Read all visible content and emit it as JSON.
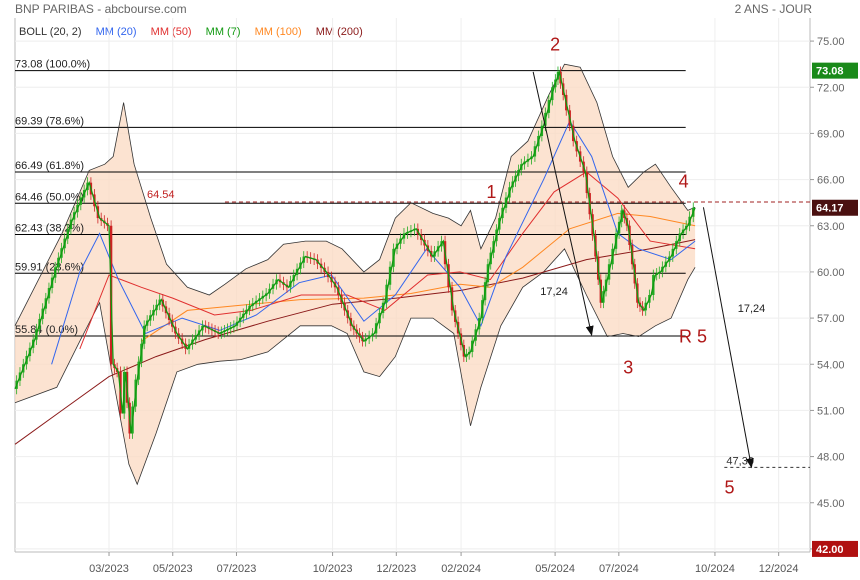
{
  "header": {
    "title": "BNP PARIBAS - abcbourse.com",
    "period": "2 ANS - JOUR"
  },
  "legend": [
    {
      "label": "BOLL (20, 2)",
      "color": "#333333"
    },
    {
      "label": "MM (20)",
      "color": "#3366ee"
    },
    {
      "label": "MM (50)",
      "color": "#e03030"
    },
    {
      "label": "MM (7)",
      "color": "#119911"
    },
    {
      "label": "MM (100)",
      "color": "#ff8822"
    },
    {
      "label": "MM (200)",
      "color": "#8b1a1a"
    }
  ],
  "chart_data": {
    "type": "line",
    "y_axis_side": "right",
    "ylim": [
      41.8,
      76.5
    ],
    "y_ticks": [
      {
        "value": 75,
        "label": "75.00"
      },
      {
        "value": 72,
        "label": "72.00"
      },
      {
        "value": 69,
        "label": "69.00"
      },
      {
        "value": 66,
        "label": "66.00"
      },
      {
        "value": 63,
        "label": "63.00"
      },
      {
        "value": 60,
        "label": "60.00"
      },
      {
        "value": 57,
        "label": "57.00"
      },
      {
        "value": 54,
        "label": "54.00"
      },
      {
        "value": 51,
        "label": "51.00"
      },
      {
        "value": 48,
        "label": "48.00"
      },
      {
        "value": 45,
        "label": "45.00"
      },
      {
        "value": 42,
        "label": "42.00"
      }
    ],
    "x_range": [
      "2022-12-01",
      "2024-12-31"
    ],
    "x_ticks": [
      {
        "date": "2023-03-01",
        "label": "03/2023"
      },
      {
        "date": "2023-05-01",
        "label": "05/2023"
      },
      {
        "date": "2023-07-01",
        "label": "07/2023"
      },
      {
        "date": "2023-10-01",
        "label": "10/2023"
      },
      {
        "date": "2023-12-01",
        "label": "12/2023"
      },
      {
        "date": "2024-02-01",
        "label": "02/2024"
      },
      {
        "date": "2024-05-01",
        "label": "05/2024"
      },
      {
        "date": "2024-07-01",
        "label": "07/2024"
      },
      {
        "date": "2024-10-01",
        "label": "10/2024"
      },
      {
        "date": "2024-12-01",
        "label": "12/2024"
      }
    ],
    "last_price": {
      "value": 64.17,
      "label": "64.17"
    },
    "high_badge": {
      "value": 73.08,
      "label": "73.08"
    },
    "low_badge": {
      "value": 42.0,
      "label": "42.00"
    },
    "fibonacci_levels": [
      {
        "value": 73.08,
        "label": "73.08  (100.0%)"
      },
      {
        "value": 69.39,
        "label": "69.39  (78.6%)"
      },
      {
        "value": 66.49,
        "label": "66.49  (61.8%)"
      },
      {
        "value": 64.46,
        "label": "64.46  (50.0%)"
      },
      {
        "value": 62.43,
        "label": "62.43  (38.2%)"
      },
      {
        "value": 59.91,
        "label": "59.91  (23.6%)"
      },
      {
        "value": 55.84,
        "label": "55.84  (0.0%)"
      }
    ],
    "resistance_line": {
      "value": 64.54,
      "label": "64.54"
    },
    "target_level": {
      "value": 47.3,
      "label": "47,30"
    },
    "wave_labels": [
      {
        "label": "1",
        "date": "2024-03-01",
        "value": 64.8
      },
      {
        "label": "2",
        "date": "2024-05-01",
        "value": 74.4
      },
      {
        "label": "3",
        "date": "2024-07-10",
        "value": 53.4
      },
      {
        "label": "4",
        "date": "2024-09-01",
        "value": 65.5
      },
      {
        "label": "R 5",
        "date": "2024-09-10",
        "value": 55.4
      },
      {
        "label": "5",
        "date": "2024-10-15",
        "value": 45.6
      }
    ],
    "arrows": [
      {
        "label": "17,24",
        "from": {
          "date": "2024-04-10",
          "value": 73.0
        },
        "to": {
          "date": "2024-06-05",
          "value": 55.9
        },
        "label_at": {
          "date": "2024-04-30",
          "value": 58.5
        }
      },
      {
        "label": "17,24",
        "from": {
          "date": "2024-09-20",
          "value": 64.2
        },
        "to": {
          "date": "2024-11-05",
          "value": 47.3
        },
        "label_at": {
          "date": "2024-11-05",
          "value": 57.4
        }
      }
    ],
    "series": [
      {
        "key": "price",
        "color": "#119911",
        "points": [
          [
            "2022-12-01",
            52.4
          ],
          [
            "2022-12-20",
            55.6
          ],
          [
            "2023-01-10",
            60.3
          ],
          [
            "2023-01-25",
            63.4
          ],
          [
            "2023-02-10",
            65.8
          ],
          [
            "2023-02-20",
            63.5
          ],
          [
            "2023-03-01",
            63.0
          ],
          [
            "2023-03-05",
            54.0
          ],
          [
            "2023-03-10",
            53.5
          ],
          [
            "2023-03-14",
            50.8
          ],
          [
            "2023-03-17",
            53.5
          ],
          [
            "2023-03-22",
            49.5
          ],
          [
            "2023-03-28",
            53.0
          ],
          [
            "2023-04-05",
            56.5
          ],
          [
            "2023-04-20",
            58.2
          ],
          [
            "2023-05-05",
            56.0
          ],
          [
            "2023-05-15",
            55.0
          ],
          [
            "2023-05-31",
            56.5
          ],
          [
            "2023-06-15",
            56.0
          ],
          [
            "2023-06-30",
            56.5
          ],
          [
            "2023-07-15",
            57.8
          ],
          [
            "2023-07-31",
            58.6
          ],
          [
            "2023-08-10",
            59.5
          ],
          [
            "2023-08-20",
            59.0
          ],
          [
            "2023-09-05",
            61.0
          ],
          [
            "2023-09-15",
            60.8
          ],
          [
            "2023-09-25",
            60.0
          ],
          [
            "2023-10-05",
            59.0
          ],
          [
            "2023-10-20",
            56.5
          ],
          [
            "2023-10-31",
            55.5
          ],
          [
            "2023-11-10",
            56.0
          ],
          [
            "2023-11-20",
            58.0
          ],
          [
            "2023-11-30",
            61.5
          ],
          [
            "2023-12-10",
            62.5
          ],
          [
            "2023-12-20",
            62.8
          ],
          [
            "2024-01-05",
            61.0
          ],
          [
            "2024-01-15",
            62.0
          ],
          [
            "2024-01-25",
            57.5
          ],
          [
            "2024-02-05",
            54.5
          ],
          [
            "2024-02-10",
            54.8
          ],
          [
            "2024-02-20",
            57.0
          ],
          [
            "2024-02-28",
            60.5
          ],
          [
            "2024-03-10",
            63.5
          ],
          [
            "2024-03-20",
            65.5
          ],
          [
            "2024-03-31",
            67.0
          ],
          [
            "2024-04-10",
            67.5
          ],
          [
            "2024-04-20",
            69.5
          ],
          [
            "2024-04-30",
            72.0
          ],
          [
            "2024-05-05",
            73.0
          ],
          [
            "2024-05-10",
            71.5
          ],
          [
            "2024-05-20",
            68.5
          ],
          [
            "2024-05-30",
            66.5
          ],
          [
            "2024-06-10",
            61.0
          ],
          [
            "2024-06-15",
            58.0
          ],
          [
            "2024-06-20",
            59.5
          ],
          [
            "2024-06-30",
            62.5
          ],
          [
            "2024-07-05",
            64.0
          ],
          [
            "2024-07-10",
            63.0
          ],
          [
            "2024-07-15",
            60.5
          ],
          [
            "2024-07-20",
            58.0
          ],
          [
            "2024-07-25",
            57.5
          ],
          [
            "2024-08-01",
            58.5
          ],
          [
            "2024-08-05",
            59.8
          ],
          [
            "2024-08-10",
            60.0
          ],
          [
            "2024-08-20",
            61.0
          ],
          [
            "2024-08-30",
            62.5
          ],
          [
            "2024-09-05",
            63.0
          ],
          [
            "2024-09-12",
            64.17
          ]
        ]
      },
      {
        "key": "mm20",
        "color": "#3366ee",
        "points": [
          [
            "2023-01-05",
            54.0
          ],
          [
            "2023-02-01",
            60.0
          ],
          [
            "2023-02-20",
            62.5
          ],
          [
            "2023-03-10",
            59.5
          ],
          [
            "2023-04-05",
            56.0
          ],
          [
            "2023-05-10",
            57.0
          ],
          [
            "2023-06-15",
            56.2
          ],
          [
            "2023-07-20",
            57.2
          ],
          [
            "2023-08-30",
            59.3
          ],
          [
            "2023-09-30",
            59.8
          ],
          [
            "2023-10-31",
            56.8
          ],
          [
            "2023-11-30",
            58.5
          ],
          [
            "2023-12-30",
            61.5
          ],
          [
            "2024-01-31",
            59.0
          ],
          [
            "2024-02-20",
            56.5
          ],
          [
            "2024-03-15",
            61.0
          ],
          [
            "2024-04-20",
            66.0
          ],
          [
            "2024-05-15",
            69.8
          ],
          [
            "2024-06-05",
            67.5
          ],
          [
            "2024-06-30",
            62.5
          ],
          [
            "2024-07-20",
            61.5
          ],
          [
            "2024-08-20",
            60.8
          ],
          [
            "2024-09-12",
            62.0
          ]
        ]
      },
      {
        "key": "mm50",
        "color": "#e03030",
        "points": [
          [
            "2023-02-01",
            55.0
          ],
          [
            "2023-03-01",
            59.8
          ],
          [
            "2023-04-01",
            59.0
          ],
          [
            "2023-05-01",
            58.3
          ],
          [
            "2023-06-10",
            57.2
          ],
          [
            "2023-07-15",
            57.5
          ],
          [
            "2023-09-01",
            58.5
          ],
          [
            "2023-10-15",
            58.5
          ],
          [
            "2023-11-20",
            57.5
          ],
          [
            "2023-12-31",
            59.8
          ],
          [
            "2024-01-31",
            60.0
          ],
          [
            "2024-02-29",
            59.5
          ],
          [
            "2024-03-31",
            62.5
          ],
          [
            "2024-04-30",
            65.2
          ],
          [
            "2024-05-31",
            66.5
          ],
          [
            "2024-06-30",
            64.8
          ],
          [
            "2024-07-31",
            62.0
          ],
          [
            "2024-09-12",
            61.5
          ]
        ]
      },
      {
        "key": "mm100",
        "color": "#ff8822",
        "points": [
          [
            "2023-04-01",
            55.5
          ],
          [
            "2023-05-15",
            57.5
          ],
          [
            "2023-06-30",
            57.8
          ],
          [
            "2023-08-31",
            58.2
          ],
          [
            "2023-10-31",
            58.3
          ],
          [
            "2023-12-15",
            58.6
          ],
          [
            "2024-01-31",
            59.2
          ],
          [
            "2024-02-29",
            59.0
          ],
          [
            "2024-03-31",
            60.3
          ],
          [
            "2024-05-15",
            62.8
          ],
          [
            "2024-06-30",
            63.8
          ],
          [
            "2024-07-31",
            63.6
          ],
          [
            "2024-09-12",
            63.0
          ]
        ]
      },
      {
        "key": "mm200",
        "color": "#8b1a1a",
        "points": [
          [
            "2022-12-01",
            48.8
          ],
          [
            "2023-01-15",
            51.0
          ],
          [
            "2023-03-01",
            53.2
          ],
          [
            "2023-04-15",
            54.5
          ],
          [
            "2023-06-01",
            55.6
          ],
          [
            "2023-07-31",
            56.8
          ],
          [
            "2023-10-01",
            57.9
          ],
          [
            "2023-12-01",
            58.3
          ],
          [
            "2024-02-01",
            58.8
          ],
          [
            "2024-03-31",
            59.6
          ],
          [
            "2024-05-31",
            60.8
          ],
          [
            "2024-07-31",
            61.5
          ],
          [
            "2024-09-12",
            62.1
          ]
        ]
      },
      {
        "key": "boll_upper",
        "color": "#333333",
        "points": [
          [
            "2022-12-01",
            56.5
          ],
          [
            "2023-01-15",
            62.5
          ],
          [
            "2023-02-10",
            66.6
          ],
          [
            "2023-02-25",
            67.0
          ],
          [
            "2023-03-05",
            67.5
          ],
          [
            "2023-03-15",
            71.0
          ],
          [
            "2023-03-25",
            67.0
          ],
          [
            "2023-04-10",
            63.5
          ],
          [
            "2023-04-25",
            60.5
          ],
          [
            "2023-05-15",
            59.0
          ],
          [
            "2023-06-05",
            58.5
          ],
          [
            "2023-06-20",
            59.2
          ],
          [
            "2023-07-10",
            60.2
          ],
          [
            "2023-07-31",
            60.8
          ],
          [
            "2023-08-15",
            61.8
          ],
          [
            "2023-09-05",
            62.0
          ],
          [
            "2023-09-25",
            62.0
          ],
          [
            "2023-10-10",
            61.5
          ],
          [
            "2023-10-31",
            60.0
          ],
          [
            "2023-11-15",
            60.8
          ],
          [
            "2023-11-30",
            63.5
          ],
          [
            "2023-12-15",
            64.5
          ],
          [
            "2024-01-05",
            63.8
          ],
          [
            "2024-01-20",
            63.5
          ],
          [
            "2024-02-01",
            63.0
          ],
          [
            "2024-02-10",
            64.0
          ],
          [
            "2024-02-20",
            61.5
          ],
          [
            "2024-03-05",
            63.5
          ],
          [
            "2024-03-20",
            67.5
          ],
          [
            "2024-04-05",
            68.5
          ],
          [
            "2024-04-25",
            71.5
          ],
          [
            "2024-05-10",
            73.5
          ],
          [
            "2024-05-25",
            73.3
          ],
          [
            "2024-06-10",
            71.0
          ],
          [
            "2024-06-25",
            67.5
          ],
          [
            "2024-07-10",
            65.5
          ],
          [
            "2024-07-25",
            66.5
          ],
          [
            "2024-08-05",
            67.0
          ],
          [
            "2024-08-20",
            65.5
          ],
          [
            "2024-09-05",
            64.0
          ],
          [
            "2024-09-12",
            64.2
          ]
        ]
      },
      {
        "key": "boll_lower",
        "color": "#333333",
        "points": [
          [
            "2022-12-01",
            51.5
          ],
          [
            "2023-01-10",
            52.5
          ],
          [
            "2023-02-01",
            55.5
          ],
          [
            "2023-02-20",
            58.0
          ],
          [
            "2023-03-05",
            53.0
          ],
          [
            "2023-03-20",
            47.5
          ],
          [
            "2023-03-28",
            46.2
          ],
          [
            "2023-04-15",
            49.5
          ],
          [
            "2023-05-05",
            53.5
          ],
          [
            "2023-05-25",
            54.0
          ],
          [
            "2023-06-15",
            54.2
          ],
          [
            "2023-07-05",
            54.3
          ],
          [
            "2023-07-31",
            54.8
          ],
          [
            "2023-08-31",
            56.5
          ],
          [
            "2023-09-30",
            56.5
          ],
          [
            "2023-10-15",
            56.0
          ],
          [
            "2023-10-31",
            53.5
          ],
          [
            "2023-11-15",
            53.2
          ],
          [
            "2023-11-30",
            54.5
          ],
          [
            "2023-12-15",
            57.0
          ],
          [
            "2024-01-05",
            57.0
          ],
          [
            "2024-01-25",
            56.0
          ],
          [
            "2024-02-10",
            50.0
          ],
          [
            "2024-02-20",
            52.5
          ],
          [
            "2024-03-10",
            56.5
          ],
          [
            "2024-03-31",
            59.0
          ],
          [
            "2024-04-20",
            60.0
          ],
          [
            "2024-05-10",
            61.5
          ],
          [
            "2024-05-31",
            58.5
          ],
          [
            "2024-06-20",
            55.8
          ],
          [
            "2024-07-05",
            56.0
          ],
          [
            "2024-07-20",
            55.8
          ],
          [
            "2024-08-05",
            56.5
          ],
          [
            "2024-08-20",
            57.0
          ],
          [
            "2024-09-05",
            59.5
          ],
          [
            "2024-09-12",
            60.3
          ]
        ]
      }
    ]
  }
}
